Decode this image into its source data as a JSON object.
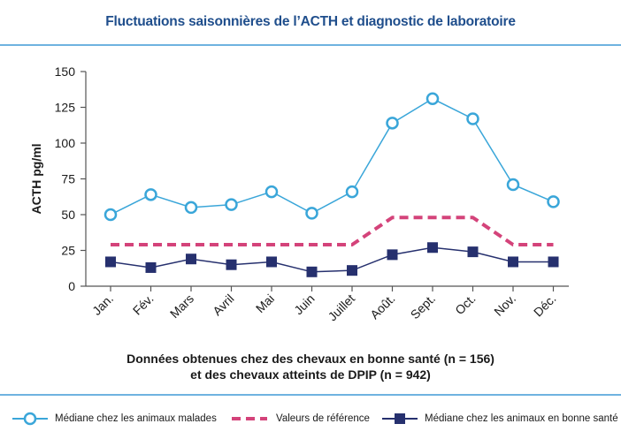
{
  "header": {
    "title": "Fluctuations saisonnières de l’ACTH et diagnostic de laboratoire"
  },
  "colors": {
    "title": "#1f4e8c",
    "rule": "#6fb3e0",
    "malades": "#3aa6d9",
    "reference": "#d4437a",
    "sante": "#26306e"
  },
  "chart_data": {
    "type": "line",
    "title": "Fluctuations saisonnières de l’ACTH et diagnostic de laboratoire",
    "ylabel": "ACTH pg/ml",
    "xlabel": "",
    "ylim": [
      0,
      150
    ],
    "yticks": [
      "0",
      "25",
      "50",
      "75",
      "100",
      "125",
      "150"
    ],
    "categories": [
      "Jan.",
      "Fév.",
      "Mars",
      "Avril",
      "Mai",
      "Juin",
      "Juillet",
      "Août.",
      "Sept.",
      "Oct.",
      "Nov.",
      "Déc."
    ],
    "series": [
      {
        "name": "Médiane chez les animaux malades",
        "style": "line-circle",
        "values": [
          50,
          64,
          55,
          57,
          66,
          51,
          66,
          114,
          131,
          117,
          71,
          59
        ]
      },
      {
        "name": "Valeurs de référence",
        "style": "dashed",
        "values": [
          29,
          29,
          29,
          29,
          29,
          29,
          29,
          48,
          48,
          48,
          29,
          29
        ]
      },
      {
        "name": "Médiane chez les animaux en bonne santé",
        "style": "line-square",
        "values": [
          17,
          13,
          19,
          15,
          17,
          10,
          11,
          22,
          27,
          24,
          17,
          17
        ]
      }
    ]
  },
  "caption": {
    "line1": "Données obtenues chez des chevaux en bonne santé (n = 156)",
    "line2": "et des chevaux atteints de DPIP (n = 942)"
  },
  "legend": {
    "malades": "Médiane chez les animaux malades",
    "reference": "Valeurs de référence",
    "sante": "Médiane chez les animaux en bonne santé"
  }
}
